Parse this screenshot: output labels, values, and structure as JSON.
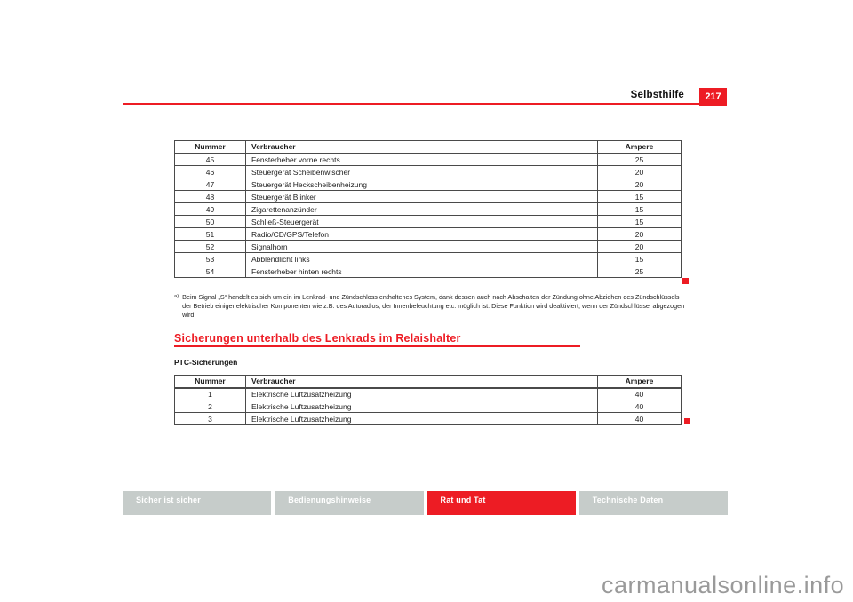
{
  "header": {
    "section_title": "Selbsthilfe",
    "page_number": "217"
  },
  "fuse_table_engine": {
    "columns": [
      "Nummer",
      "Verbraucher",
      "Ampere"
    ],
    "rows": [
      [
        "45",
        "Fensterheber vorne rechts",
        "25"
      ],
      [
        "46",
        "Steuergerät Scheibenwischer",
        "20"
      ],
      [
        "47",
        "Steuergerät Heckscheibenheizung",
        "20"
      ],
      [
        "48",
        "Steuergerät Blinker",
        "15"
      ],
      [
        "49",
        "Zigarettenanzünder",
        "15"
      ],
      [
        "50",
        "Schließ-Steuergerät",
        "15"
      ],
      [
        "51",
        "Radio/CD/GPS/Telefon",
        "20"
      ],
      [
        "52",
        "Signalhorn",
        "20"
      ],
      [
        "53",
        "Abblendlicht links",
        "15"
      ],
      [
        "54",
        "Fensterheber hinten rechts",
        "25"
      ]
    ]
  },
  "footnote": {
    "marker": "a)",
    "text": "Beim Signal „S“ handelt es sich um ein im Lenkrad- und Zündschloss enthaltenes System, dank dessen auch nach Abschalten der Zündung ohne Abziehen des Zündschlüssels der Betrieb einiger elektrischer Komponenten wie z.B. des Autoradios, der Innenbeleuchtung etc. möglich ist. Diese Funktion wird deaktiviert, wenn der Zündschlüssel abgezogen wird."
  },
  "relay_section": {
    "heading": "Sicherungen unterhalb des Lenkrads im Relaishalter",
    "subheading": "PTC-Sicherungen"
  },
  "fuse_table_ptc": {
    "columns": [
      "Nummer",
      "Verbraucher",
      "Ampere"
    ],
    "rows": [
      [
        "1",
        "Elektrische Luftzusatzheizung",
        "40"
      ],
      [
        "2",
        "Elektrische Luftzusatzheizung",
        "40"
      ],
      [
        "3",
        "Elektrische Luftzusatzheizung",
        "40"
      ]
    ]
  },
  "footer": {
    "tabs": [
      {
        "label": "Sicher ist sicher",
        "active": false
      },
      {
        "label": "Bedienungshinweise",
        "active": false
      },
      {
        "label": "Rat und Tat",
        "active": true
      },
      {
        "label": "Technische Daten",
        "active": false
      }
    ]
  },
  "watermark": "carmanualsonline.info",
  "colors": {
    "accent_red": "#ed1c24",
    "footer_gray": "#c6ccca",
    "watermark_gray": "#9a9a9a"
  }
}
